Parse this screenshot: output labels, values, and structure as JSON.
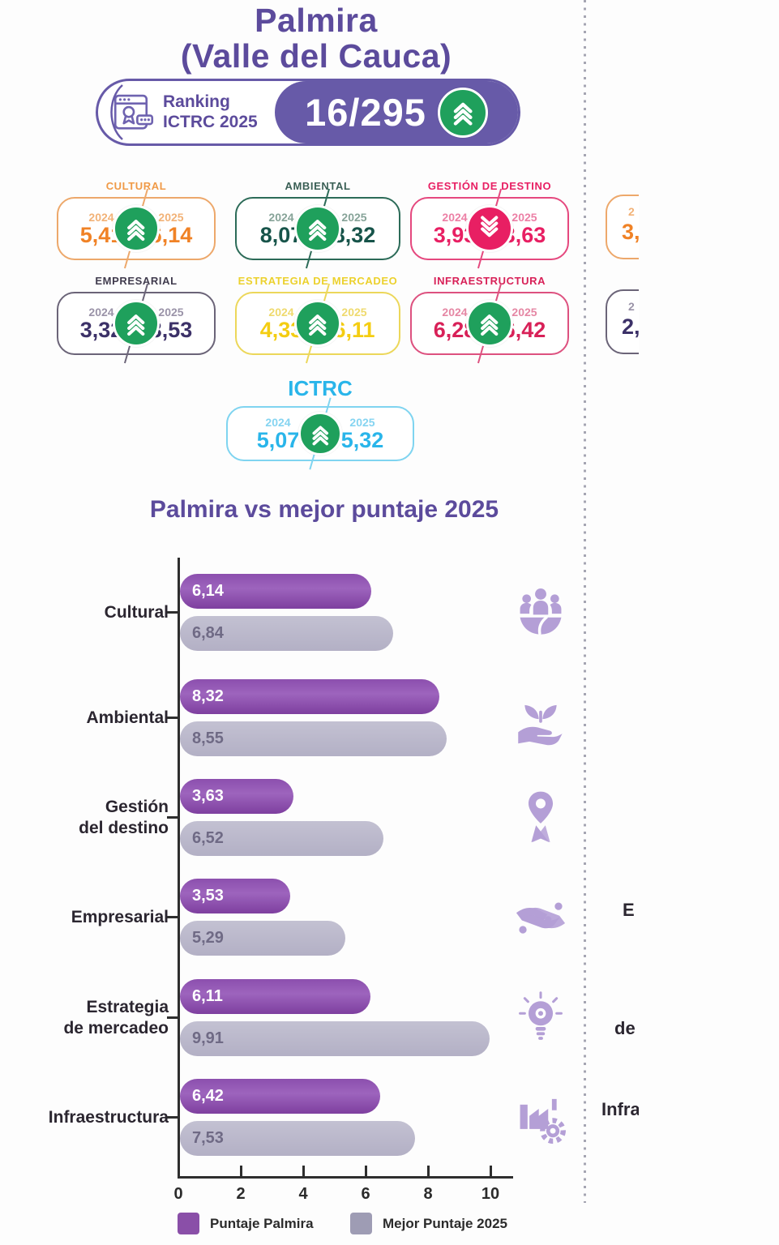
{
  "header": {
    "title_line1": "Palmira",
    "title_line2": "(Valle del Cauca)",
    "ranking_label_line1": "Ranking",
    "ranking_label_line2": "ICTRC 2025",
    "ranking_value": "16/295",
    "ranking_trend": "up",
    "pill_color": "#675AA8",
    "trend_up_color": "#1FA05C",
    "trend_down_color": "#E81F63"
  },
  "card_years": [
    "2024",
    "2025"
  ],
  "cards": [
    {
      "title": "CULTURAL",
      "value_2024": "5,41",
      "value_2025": "6,14",
      "trend": "up",
      "color": "#F08226"
    },
    {
      "title": "AMBIENTAL",
      "value_2024": "8,07",
      "value_2025": "8,32",
      "trend": "up",
      "color": "#17544A"
    },
    {
      "title": "GESTIÓN DE DESTINO",
      "value_2024": "3,93",
      "value_2025": "3,63",
      "trend": "down",
      "color": "#E81F63"
    },
    {
      "title": "EMPRESARIAL",
      "value_2024": "3,32",
      "value_2025": "3,53",
      "trend": "up",
      "color": "#3C3168"
    },
    {
      "title": "ESTRATEGIA DE MERCADEO",
      "value_2024": "4,33",
      "value_2025": "6,11",
      "trend": "up",
      "color": "#F4CD12"
    },
    {
      "title": "INFRAESTRUCTURA",
      "value_2024": "6,28",
      "value_2025": "6,42",
      "trend": "up",
      "color": "#D82158"
    }
  ],
  "ictrc_card": {
    "title": "ICTRC",
    "value_2024": "5,07",
    "value_2025": "5,32",
    "trend": "up",
    "color": "#29B5EA"
  },
  "chart": {
    "title": "Palmira vs mejor puntaje 2025",
    "x_tick_labels": [
      "0",
      "2",
      "4",
      "6",
      "8",
      "10"
    ],
    "rows": [
      {
        "label": "Cultural",
        "palmira_label": "6,14",
        "mejor_label": "6,84",
        "icon": "community-icon"
      },
      {
        "label": "Ambiental",
        "palmira_label": "8,32",
        "mejor_label": "8,55",
        "icon": "hand-plant-icon"
      },
      {
        "label": "Gestión\ndel destino",
        "palmira_label": "3,63",
        "mejor_label": "6,52",
        "icon": "location-pin-icon"
      },
      {
        "label": "Empresarial",
        "palmira_label": "3,53",
        "mejor_label": "5,29",
        "icon": "hands-money-icon"
      },
      {
        "label": "Estrategia\nde mercadeo",
        "palmira_label": "6,11",
        "mejor_label": "9,91",
        "icon": "idea-bulb-icon"
      },
      {
        "label": "Infraestructura",
        "palmira_label": "6,42",
        "mejor_label": "7,53",
        "icon": "industry-gear-icon"
      }
    ],
    "legend": [
      {
        "label": "Puntaje Palmira",
        "color": "#8A4FA8"
      },
      {
        "label": "Mejor Puntaje 2025",
        "color": "#9E9CB4"
      }
    ]
  },
  "chart_data": {
    "type": "bar",
    "orientation": "horizontal",
    "title": "Palmira vs mejor puntaje 2025",
    "categories": [
      "Cultural",
      "Ambiental",
      "Gestión del destino",
      "Empresarial",
      "Estrategia de mercadeo",
      "Infraestructura"
    ],
    "series": [
      {
        "name": "Puntaje Palmira",
        "values": [
          6.14,
          8.32,
          3.63,
          3.53,
          6.11,
          6.42
        ]
      },
      {
        "name": "Mejor Puntaje 2025",
        "values": [
          6.84,
          8.55,
          6.52,
          5.29,
          9.91,
          7.53
        ]
      }
    ],
    "xlim": [
      0,
      10
    ],
    "x_ticks": [
      0,
      2,
      4,
      6,
      8,
      10
    ],
    "grid": false,
    "legend_position": "bottom"
  },
  "right_fragments": {
    "card_row1": {
      "year_fragment": "2",
      "value_fragment": "3,"
    },
    "card_row2": {
      "year_fragment": "2",
      "value_fragment": "2,"
    },
    "label_1": "E",
    "label_2": "de",
    "label_3": "Infra"
  }
}
